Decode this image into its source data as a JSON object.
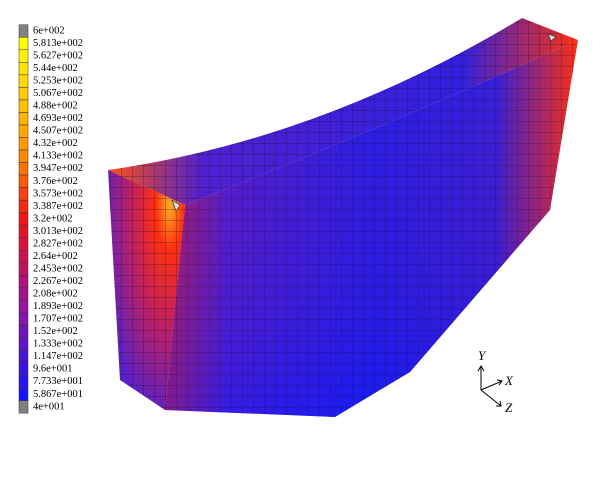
{
  "legend": {
    "labels": [
      "6e+002",
      "5.813e+002",
      "5.627e+002",
      "5.44e+002",
      "5.253e+002",
      "5.067e+002",
      "4.88e+002",
      "4.693e+002",
      "4.507e+002",
      "4.32e+002",
      "4.133e+002",
      "3.947e+002",
      "3.76e+002",
      "3.573e+002",
      "3.387e+002",
      "3.2e+002",
      "3.013e+002",
      "2.827e+002",
      "2.64e+002",
      "2.453e+002",
      "2.267e+002",
      "2.08e+002",
      "1.893e+002",
      "1.707e+002",
      "1.52e+002",
      "1.333e+002",
      "1.147e+002",
      "9.6e+001",
      "7.733e+001",
      "5.867e+001",
      "4e+001"
    ]
  },
  "axes": {
    "y": "Y",
    "x": "X",
    "z": "Z"
  }
}
